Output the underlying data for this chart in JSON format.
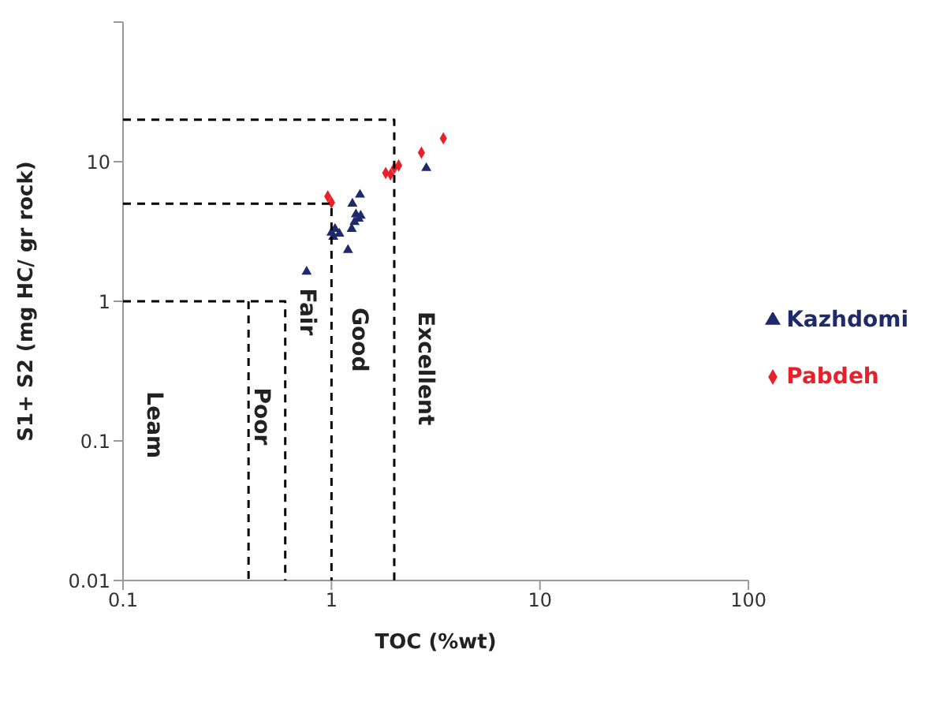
{
  "chart_data": {
    "type": "scatter",
    "xlabel": "TOC (%wt)",
    "ylabel": "S1+ S2 (mg HC/ gr rock)",
    "log": "xy",
    "grid": false,
    "legend": "right",
    "xlim": [
      0.1,
      100
    ],
    "xticks": [
      0.1,
      1,
      10,
      100
    ],
    "ylim": [
      0.01,
      100
    ],
    "yticks": [
      0.01,
      0.1,
      1,
      10,
      {
        "value": 100,
        "label": null
      }
    ],
    "series": [
      {
        "name": "Kazhdomi",
        "color": "#1f2a6b",
        "marker": "triangle",
        "x": [
          2.85,
          0.76,
          1.2,
          1.02,
          1.0,
          1.09,
          1.04,
          1.25,
          1.29,
          1.31,
          1.38,
          1.26,
          1.37,
          1.35
        ],
        "values": [
          9.0,
          1.63,
          2.33,
          2.9,
          3.1,
          3.05,
          3.3,
          3.3,
          3.7,
          4.2,
          4.1,
          5.0,
          5.8,
          3.9
        ]
      },
      {
        "name": "Pabdeh",
        "color": "#e8202a",
        "marker": "diamond",
        "x": [
          0.96,
          1.0,
          1.82,
          1.92,
          2.0,
          2.1,
          2.7,
          3.44
        ],
        "values": [
          5.65,
          5.1,
          8.3,
          8.1,
          9.0,
          9.4,
          11.6,
          14.7
        ]
      },
      {
        "type": "line",
        "color": "#000000",
        "line_style": "dashed",
        "marker": "none",
        "x": [
          0.1,
          2,
          2
        ],
        "values": [
          20,
          20,
          0.01
        ]
      },
      {
        "type": "line",
        "color": "#000000",
        "line_style": "dashed",
        "marker": "none",
        "x": [
          0.1,
          1,
          1
        ],
        "values": [
          5,
          5,
          0.01
        ]
      },
      {
        "type": "line",
        "color": "#000000",
        "line_style": "dashed",
        "marker": "none",
        "x": [
          0.1,
          0.6,
          0.6
        ],
        "values": [
          1,
          1,
          0.01
        ]
      },
      {
        "type": "line",
        "color": "#000000",
        "line_style": "dashed",
        "marker": "none",
        "x": [
          0.4,
          0.4
        ],
        "values": [
          1,
          0.01
        ]
      }
    ],
    "annotations": [
      "Leam",
      "Poor",
      "Fair",
      "Good",
      "Excellent"
    ]
  }
}
